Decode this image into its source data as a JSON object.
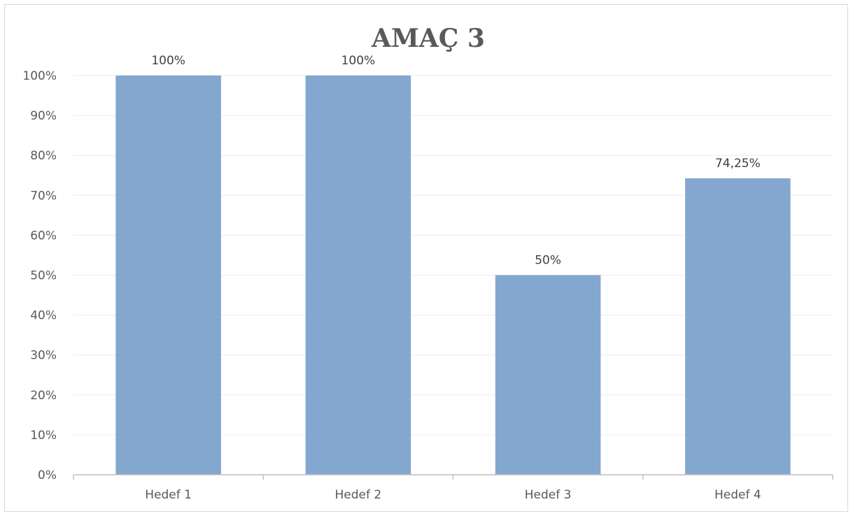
{
  "chart_data": {
    "type": "bar",
    "title": "AMAÇ 3",
    "categories": [
      "Hedef 1",
      "Hedef 2",
      "Hedef 3",
      "Hedef 4"
    ],
    "values": [
      100,
      100,
      50,
      74.25
    ],
    "data_labels": [
      "100%",
      "100%",
      "50%",
      "74,25%"
    ],
    "y_ticks": [
      0,
      10,
      20,
      30,
      40,
      50,
      60,
      70,
      80,
      90,
      100
    ],
    "y_tick_labels": [
      "0%",
      "10%",
      "20%",
      "30%",
      "40%",
      "50%",
      "60%",
      "70%",
      "80%",
      "90%",
      "100%"
    ],
    "ylim": [
      0,
      100
    ],
    "grid": true,
    "legend": "none",
    "colors": {
      "bar": "#84a7cf",
      "grid": "#ececec",
      "axis": "#bfbfbf"
    }
  }
}
